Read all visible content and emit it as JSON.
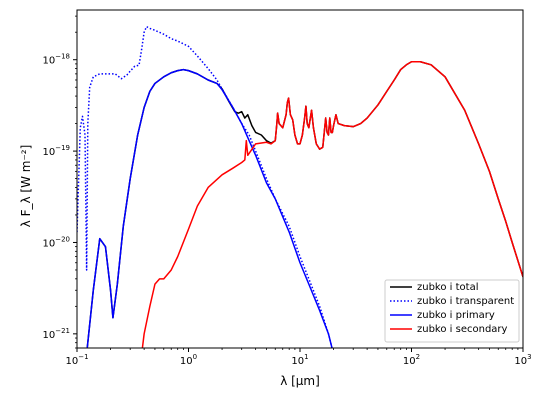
{
  "chart_data": {
    "type": "line",
    "xlabel": "λ [μm]",
    "ylabel": "λ F_λ [W m⁻²]",
    "xscale": "log",
    "yscale": "log",
    "xlim": [
      0.1,
      1000
    ],
    "ylim": [
      7e-22,
      3.5e-18
    ],
    "x_ticks": [
      {
        "value": 0.1,
        "base": "10",
        "exp": "−1"
      },
      {
        "value": 1,
        "base": "10",
        "exp": "0"
      },
      {
        "value": 10,
        "base": "10",
        "exp": "1"
      },
      {
        "value": 100,
        "base": "10",
        "exp": "2"
      },
      {
        "value": 1000,
        "base": "10",
        "exp": "3"
      }
    ],
    "y_ticks": [
      {
        "value": 1e-21,
        "base": "10",
        "exp": "−21"
      },
      {
        "value": 1e-20,
        "base": "10",
        "exp": "−20"
      },
      {
        "value": 1e-19,
        "base": "10",
        "exp": "−19"
      },
      {
        "value": 1e-18,
        "base": "10",
        "exp": "−18"
      }
    ],
    "legend_position": "lower-right",
    "grid": false,
    "series": [
      {
        "name": "zubko i total",
        "color": "#000000",
        "style": "solid",
        "points": [
          [
            0.12,
            5e-22
          ],
          [
            0.14,
            3e-21
          ],
          [
            0.16,
            1.1e-20
          ],
          [
            0.18,
            9e-21
          ],
          [
            0.2,
            3e-21
          ],
          [
            0.21,
            1.5e-21
          ],
          [
            0.23,
            3.5e-21
          ],
          [
            0.26,
            1.5e-20
          ],
          [
            0.3,
            5e-20
          ],
          [
            0.35,
            1.5e-19
          ],
          [
            0.4,
            3e-19
          ],
          [
            0.45,
            4.5e-19
          ],
          [
            0.5,
            5.5e-19
          ],
          [
            0.6,
            6.5e-19
          ],
          [
            0.7,
            7.2e-19
          ],
          [
            0.8,
            7.6e-19
          ],
          [
            0.9,
            7.8e-19
          ],
          [
            1.0,
            7.6e-19
          ],
          [
            1.2,
            7e-19
          ],
          [
            1.5,
            6e-19
          ],
          [
            1.8,
            5.5e-19
          ],
          [
            2.0,
            4.8e-19
          ],
          [
            2.3,
            3.5e-19
          ],
          [
            2.6,
            2.7e-19
          ],
          [
            2.8,
            2.6e-19
          ],
          [
            3.0,
            2.7e-19
          ],
          [
            3.2,
            2.3e-19
          ],
          [
            3.4,
            2.5e-19
          ],
          [
            3.7,
            1.9e-19
          ],
          [
            4.0,
            1.6e-19
          ],
          [
            4.5,
            1.5e-19
          ],
          [
            5.0,
            1.3e-19
          ],
          [
            5.5,
            1.22e-19
          ],
          [
            6.0,
            1.3e-19
          ],
          [
            6.2,
            2e-19
          ],
          [
            6.3,
            2.6e-19
          ],
          [
            6.5,
            2e-19
          ],
          [
            7.0,
            1.8e-19
          ],
          [
            7.5,
            2.5e-19
          ],
          [
            7.7,
            3.4e-19
          ],
          [
            7.9,
            3.8e-19
          ],
          [
            8.2,
            2.5e-19
          ],
          [
            8.6,
            2.2e-19
          ],
          [
            9.0,
            1.5e-19
          ],
          [
            9.5,
            1.2e-19
          ],
          [
            10,
            1.2e-19
          ],
          [
            10.5,
            1.5e-19
          ],
          [
            11.0,
            2.3e-19
          ],
          [
            11.3,
            3.1e-19
          ],
          [
            11.6,
            2e-19
          ],
          [
            12.0,
            1.8e-19
          ],
          [
            12.7,
            2.8e-19
          ],
          [
            13.2,
            1.8e-19
          ],
          [
            14.0,
            1.2e-19
          ],
          [
            15.0,
            1.05e-19
          ],
          [
            16,
            1.1e-19
          ],
          [
            16.5,
            1.6e-19
          ],
          [
            17.0,
            2.3e-19
          ],
          [
            17.5,
            1.6e-19
          ],
          [
            18,
            1.5e-19
          ],
          [
            18.5,
            2.3e-19
          ],
          [
            19,
            1.6e-19
          ],
          [
            19.5,
            1.6e-19
          ],
          [
            20,
            1.9e-19
          ],
          [
            21,
            2.5e-19
          ],
          [
            22,
            2e-19
          ],
          [
            25,
            1.9e-19
          ],
          [
            30,
            1.85e-19
          ],
          [
            35,
            2e-19
          ],
          [
            40,
            2.3e-19
          ],
          [
            50,
            3.2e-19
          ],
          [
            60,
            4.5e-19
          ],
          [
            70,
            6e-19
          ],
          [
            80,
            7.8e-19
          ],
          [
            90,
            8.8e-19
          ],
          [
            100,
            9.5e-19
          ],
          [
            120,
            9.5e-19
          ],
          [
            150,
            8.8e-19
          ],
          [
            200,
            6.5e-19
          ],
          [
            300,
            2.8e-19
          ],
          [
            400,
            1.2e-19
          ],
          [
            500,
            6e-20
          ],
          [
            600,
            3e-20
          ],
          [
            700,
            1.7e-20
          ],
          [
            800,
            1e-20
          ],
          [
            1000,
            4.2e-21
          ]
        ]
      },
      {
        "name": "zubko i transparent",
        "color": "#0000ff",
        "style": "dotted",
        "points": [
          [
            0.1,
            1.3e-20
          ],
          [
            0.107,
            1.8e-19
          ],
          [
            0.112,
            2.4e-19
          ],
          [
            0.118,
            1.5e-19
          ],
          [
            0.122,
            5e-21
          ],
          [
            0.125,
            2e-19
          ],
          [
            0.13,
            5e-19
          ],
          [
            0.14,
            6.5e-19
          ],
          [
            0.16,
            7e-19
          ],
          [
            0.18,
            7e-19
          ],
          [
            0.2,
            7e-19
          ],
          [
            0.22,
            7e-19
          ],
          [
            0.25,
            6.2e-19
          ],
          [
            0.28,
            6.8e-19
          ],
          [
            0.3,
            7.5e-19
          ],
          [
            0.33,
            8.5e-19
          ],
          [
            0.36,
            8.7e-19
          ],
          [
            0.38,
            1.3e-18
          ],
          [
            0.4,
            2e-18
          ],
          [
            0.42,
            2.3e-18
          ],
          [
            0.45,
            2.2e-18
          ],
          [
            0.5,
            2.1e-18
          ],
          [
            0.6,
            1.9e-18
          ],
          [
            0.7,
            1.7e-18
          ],
          [
            0.8,
            1.6e-18
          ],
          [
            1.0,
            1.4e-18
          ],
          [
            1.2,
            1.1e-18
          ],
          [
            1.5,
            8e-19
          ],
          [
            1.8,
            6e-19
          ],
          [
            2.0,
            4.8e-19
          ],
          [
            2.5,
            3e-19
          ],
          [
            3.0,
            2e-19
          ],
          [
            3.5,
            1.5e-19
          ],
          [
            4.0,
            1e-19
          ],
          [
            5.0,
            5e-20
          ],
          [
            6.0,
            3e-20
          ],
          [
            8.0,
            1.5e-20
          ],
          [
            10,
            7e-21
          ],
          [
            12,
            4e-21
          ],
          [
            15,
            2e-21
          ],
          [
            18,
            1e-21
          ],
          [
            20,
            6e-22
          ]
        ]
      },
      {
        "name": "zubko i primary",
        "color": "#0000ff",
        "style": "solid",
        "points": [
          [
            0.12,
            5e-22
          ],
          [
            0.14,
            3e-21
          ],
          [
            0.16,
            1.1e-20
          ],
          [
            0.18,
            9e-21
          ],
          [
            0.2,
            3e-21
          ],
          [
            0.21,
            1.5e-21
          ],
          [
            0.23,
            3.5e-21
          ],
          [
            0.26,
            1.5e-20
          ],
          [
            0.3,
            5e-20
          ],
          [
            0.35,
            1.5e-19
          ],
          [
            0.4,
            3e-19
          ],
          [
            0.45,
            4.5e-19
          ],
          [
            0.5,
            5.5e-19
          ],
          [
            0.6,
            6.5e-19
          ],
          [
            0.7,
            7.2e-19
          ],
          [
            0.8,
            7.6e-19
          ],
          [
            0.9,
            7.8e-19
          ],
          [
            1.0,
            7.6e-19
          ],
          [
            1.2,
            7e-19
          ],
          [
            1.5,
            6e-19
          ],
          [
            1.8,
            5.5e-19
          ],
          [
            2.0,
            4.7e-19
          ],
          [
            2.5,
            3e-19
          ],
          [
            3.0,
            2e-19
          ],
          [
            3.5,
            1.3e-19
          ],
          [
            4.0,
            9e-20
          ],
          [
            5.0,
            4.5e-20
          ],
          [
            6.0,
            3e-20
          ],
          [
            8.0,
            1.3e-20
          ],
          [
            10,
            6e-21
          ],
          [
            12,
            3.5e-21
          ],
          [
            15,
            1.8e-21
          ],
          [
            18,
            1e-21
          ],
          [
            20,
            6e-22
          ]
        ]
      },
      {
        "name": "zubko i secondary",
        "color": "#ff0000",
        "style": "solid",
        "points": [
          [
            0.38,
            6e-22
          ],
          [
            0.4,
            1e-21
          ],
          [
            0.45,
            2e-21
          ],
          [
            0.5,
            3.5e-21
          ],
          [
            0.55,
            4e-21
          ],
          [
            0.6,
            4e-21
          ],
          [
            0.7,
            5e-21
          ],
          [
            0.8,
            7e-21
          ],
          [
            1.0,
            1.4e-20
          ],
          [
            1.2,
            2.5e-20
          ],
          [
            1.5,
            4e-20
          ],
          [
            2.0,
            5.5e-20
          ],
          [
            2.5,
            6.5e-20
          ],
          [
            3.0,
            7.5e-20
          ],
          [
            3.2,
            8e-20
          ],
          [
            3.3,
            1.3e-19
          ],
          [
            3.4,
            9e-20
          ],
          [
            4.0,
            1.2e-19
          ],
          [
            5.0,
            1.25e-19
          ],
          [
            5.5,
            1.2e-19
          ],
          [
            6.0,
            1.3e-19
          ],
          [
            6.2,
            2e-19
          ],
          [
            6.3,
            2.6e-19
          ],
          [
            6.5,
            2e-19
          ],
          [
            7.0,
            1.8e-19
          ],
          [
            7.5,
            2.5e-19
          ],
          [
            7.7,
            3.4e-19
          ],
          [
            7.9,
            3.8e-19
          ],
          [
            8.2,
            2.5e-19
          ],
          [
            8.6,
            2.2e-19
          ],
          [
            9.0,
            1.5e-19
          ],
          [
            9.5,
            1.2e-19
          ],
          [
            10,
            1.2e-19
          ],
          [
            10.5,
            1.5e-19
          ],
          [
            11.0,
            2.3e-19
          ],
          [
            11.3,
            3.1e-19
          ],
          [
            11.6,
            2e-19
          ],
          [
            12.0,
            1.8e-19
          ],
          [
            12.7,
            2.8e-19
          ],
          [
            13.2,
            1.8e-19
          ],
          [
            14.0,
            1.2e-19
          ],
          [
            15.0,
            1.05e-19
          ],
          [
            16,
            1.1e-19
          ],
          [
            16.5,
            1.6e-19
          ],
          [
            17.0,
            2.3e-19
          ],
          [
            17.5,
            1.6e-19
          ],
          [
            18,
            1.5e-19
          ],
          [
            18.5,
            2.3e-19
          ],
          [
            19,
            1.6e-19
          ],
          [
            19.5,
            1.6e-19
          ],
          [
            20,
            1.9e-19
          ],
          [
            21,
            2.5e-19
          ],
          [
            22,
            2e-19
          ],
          [
            25,
            1.9e-19
          ],
          [
            30,
            1.85e-19
          ],
          [
            35,
            2e-19
          ],
          [
            40,
            2.3e-19
          ],
          [
            50,
            3.2e-19
          ],
          [
            60,
            4.5e-19
          ],
          [
            70,
            6e-19
          ],
          [
            80,
            7.8e-19
          ],
          [
            90,
            8.8e-19
          ],
          [
            100,
            9.5e-19
          ],
          [
            120,
            9.5e-19
          ],
          [
            150,
            8.8e-19
          ],
          [
            200,
            6.5e-19
          ],
          [
            300,
            2.8e-19
          ],
          [
            400,
            1.2e-19
          ],
          [
            500,
            6e-20
          ],
          [
            600,
            3e-20
          ],
          [
            700,
            1.7e-20
          ],
          [
            800,
            1e-20
          ],
          [
            1000,
            4.2e-21
          ]
        ]
      }
    ]
  }
}
